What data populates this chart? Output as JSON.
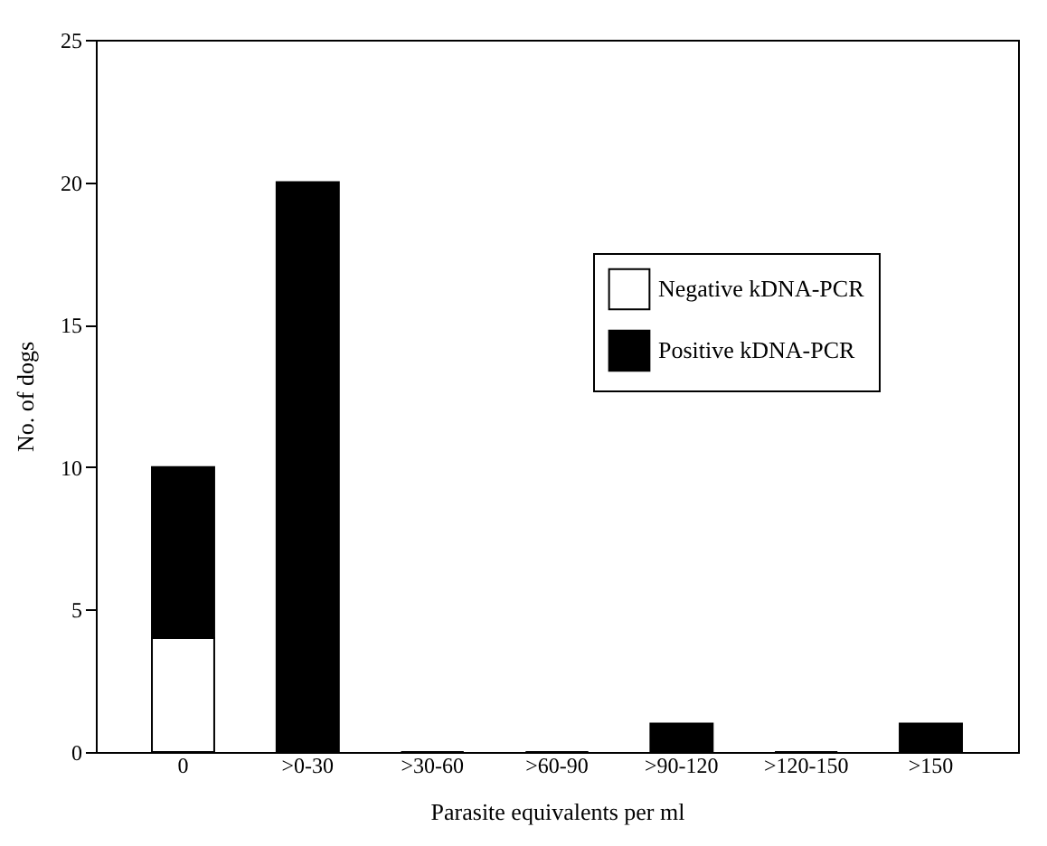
{
  "chart_data": {
    "type": "bar",
    "stacked": true,
    "xlabel": "Parasite equivalents per ml",
    "ylabel": "No. of dogs",
    "categories": [
      "0",
      ">0-30",
      ">30-60",
      ">60-90",
      ">90-120",
      ">120-150",
      ">150"
    ],
    "series": [
      {
        "name": "Negative kDNA-PCR",
        "color": "#ffffff",
        "values": [
          4,
          0,
          0,
          0,
          0,
          0,
          0
        ]
      },
      {
        "name": "Positive kDNA-PCR",
        "color": "#000000",
        "values": [
          6,
          20,
          0,
          0,
          1,
          0,
          1
        ]
      }
    ],
    "ylim": [
      0,
      25
    ],
    "yticks": [
      0,
      5,
      10,
      15,
      20,
      25
    ],
    "grid": false,
    "legend": "right"
  }
}
